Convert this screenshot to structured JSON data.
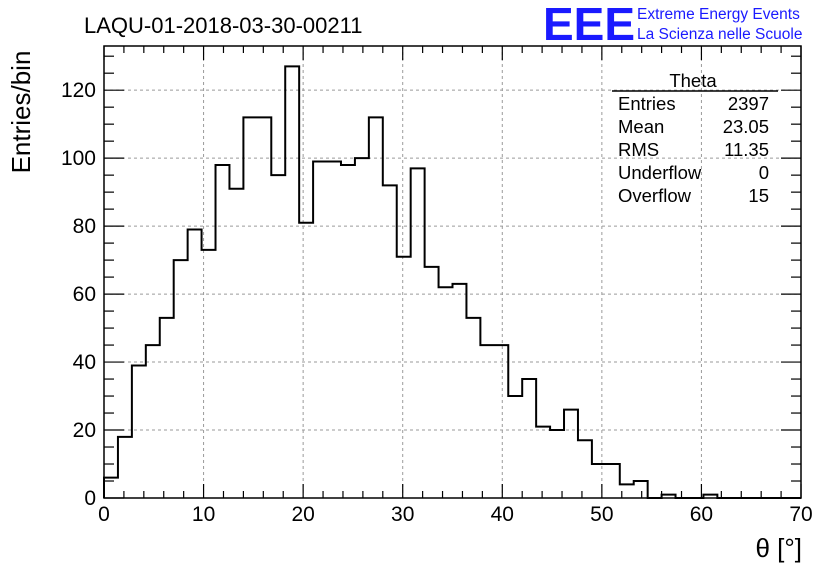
{
  "header": {
    "run_title": "LAQU-01-2018-03-30-00211",
    "logo_mark": "EEE",
    "logo_line1": "Extreme Energy Events",
    "logo_line2": "La Scienza nelle Scuole",
    "logo_color": "#1a1aff"
  },
  "stats_box": {
    "title": "Theta",
    "rows": [
      {
        "label": "Entries",
        "value": "2397"
      },
      {
        "label": "Mean",
        "value": "23.05"
      },
      {
        "label": "RMS",
        "value": "11.35"
      },
      {
        "label": "Underflow",
        "value": "0"
      },
      {
        "label": "Overflow",
        "value": "15"
      }
    ]
  },
  "chart_data": {
    "type": "histogram",
    "title": "LAQU-01-2018-03-30-00211",
    "xlabel": "θ [°]",
    "ylabel": "Entries/bin",
    "xlim": [
      0,
      70
    ],
    "ylim": [
      0,
      133
    ],
    "grid": true,
    "bin_width": 1.4,
    "x_ticks": [
      0,
      10,
      20,
      30,
      40,
      50,
      60,
      70
    ],
    "y_ticks": [
      0,
      20,
      40,
      60,
      80,
      100,
      120
    ],
    "values": [
      6,
      18,
      39,
      45,
      53,
      70,
      79,
      73,
      98,
      91,
      112,
      112,
      95,
      127,
      81,
      99,
      99,
      98,
      100,
      112,
      92,
      71,
      97,
      68,
      62,
      63,
      53,
      45,
      45,
      30,
      35,
      21,
      20,
      26,
      17,
      10,
      10,
      4,
      5,
      0,
      1,
      0,
      0,
      1,
      0,
      0,
      0,
      0,
      0,
      0
    ],
    "line_color": "#000000"
  }
}
